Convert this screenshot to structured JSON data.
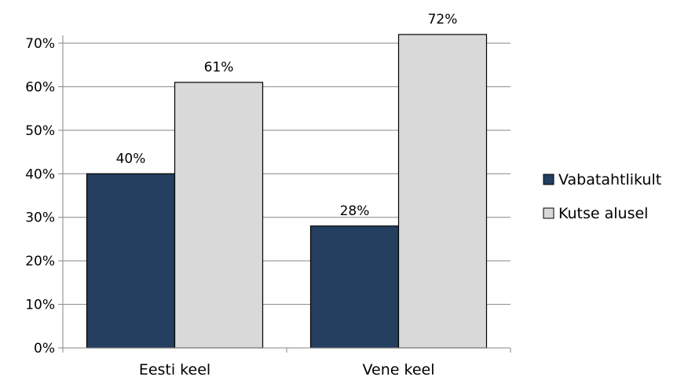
{
  "chart_data": {
    "type": "bar",
    "categories": [
      "Eesti keel",
      "Vene keel"
    ],
    "series": [
      {
        "name": "Vabatahtlikult",
        "values": [
          40,
          28
        ],
        "labels": [
          "40%",
          "28%"
        ],
        "color": "#243f60"
      },
      {
        "name": "Kutse alusel",
        "values": [
          61,
          72
        ],
        "labels": [
          "61%",
          "72%"
        ],
        "color": "#d9d9d9"
      }
    ],
    "ylim": [
      0,
      70
    ],
    "yticks": [
      0,
      10,
      20,
      30,
      40,
      50,
      60,
      70
    ],
    "ytick_labels": [
      "0%",
      "10%",
      "20%",
      "30%",
      "40%",
      "50%",
      "60%",
      "70%"
    ],
    "grid": true,
    "legend_position": "right",
    "bar_edge_color": "#000000",
    "grid_color": "#868686"
  }
}
